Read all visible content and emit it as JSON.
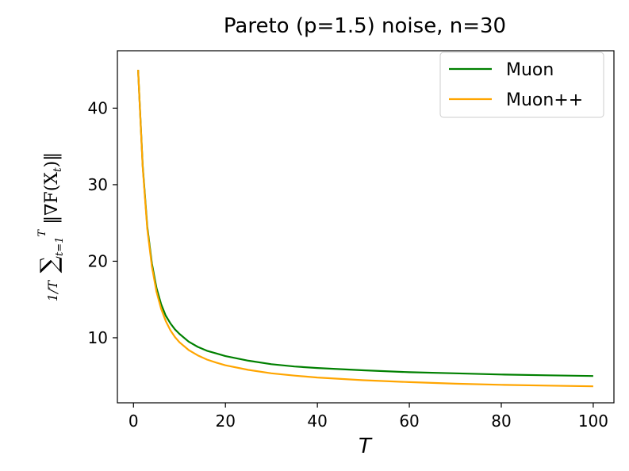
{
  "chart_data": {
    "type": "line",
    "title": "Pareto (p=1.5) noise, n=30",
    "xlabel": "T",
    "ylabel": "1/T Σ_{t=1}^{T} ‖∇F(X_t)‖",
    "xlim": [
      -3.5,
      104.5
    ],
    "ylim": [
      1.5,
      47.5
    ],
    "xticks": [
      0,
      20,
      40,
      60,
      80,
      100
    ],
    "yticks": [
      10,
      20,
      30,
      40
    ],
    "grid": false,
    "legend_position": "upper right",
    "series": [
      {
        "name": "Muon",
        "color": "#008000",
        "x": [
          1,
          2,
          3,
          4,
          5,
          6,
          7,
          8,
          9,
          10,
          12,
          14,
          16,
          18,
          20,
          25,
          30,
          35,
          40,
          50,
          60,
          70,
          80,
          90,
          100
        ],
        "y": [
          45.0,
          32.5,
          24.5,
          19.7,
          16.5,
          14.4,
          12.9,
          11.9,
          11.1,
          10.5,
          9.5,
          8.8,
          8.3,
          7.95,
          7.6,
          7.0,
          6.55,
          6.25,
          6.05,
          5.75,
          5.5,
          5.35,
          5.2,
          5.1,
          5.0
        ]
      },
      {
        "name": "Muon++",
        "color": "#ffa500",
        "x": [
          1,
          2,
          3,
          4,
          5,
          6,
          7,
          8,
          9,
          10,
          12,
          14,
          16,
          18,
          20,
          25,
          30,
          35,
          40,
          50,
          60,
          70,
          80,
          90,
          100
        ],
        "y": [
          45.0,
          32.3,
          24.2,
          19.3,
          16.0,
          13.8,
          12.2,
          11.0,
          10.1,
          9.4,
          8.4,
          7.7,
          7.15,
          6.75,
          6.4,
          5.8,
          5.35,
          5.05,
          4.8,
          4.45,
          4.2,
          4.0,
          3.85,
          3.75,
          3.65
        ]
      }
    ]
  }
}
